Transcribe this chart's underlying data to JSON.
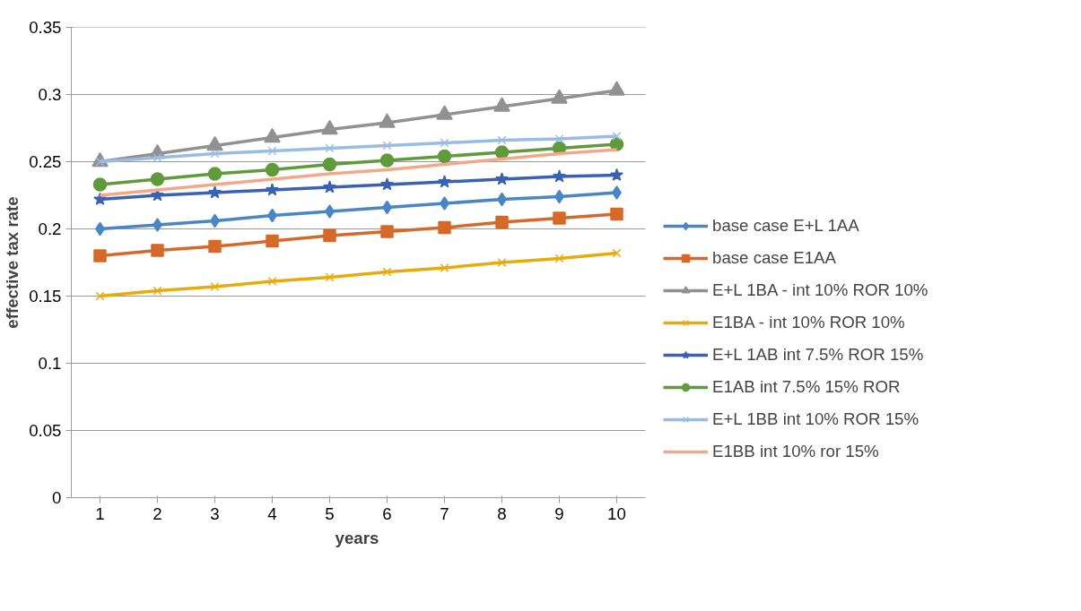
{
  "chart_data": {
    "type": "line",
    "xlabel": "years",
    "ylabel": "effective tax rate",
    "categories": [
      "1",
      "2",
      "3",
      "4",
      "5",
      "6",
      "7",
      "8",
      "9",
      "10"
    ],
    "ylim": [
      0,
      0.35
    ],
    "yticks": [
      0,
      0.05,
      0.1,
      0.15,
      0.2,
      0.25,
      0.3,
      0.35
    ],
    "grid": "y",
    "legend": "right",
    "series": [
      {
        "name": "base case E+L 1AA",
        "color": "#4a86c4",
        "marker": "diamond",
        "values": [
          0.2,
          0.203,
          0.206,
          0.21,
          0.213,
          0.216,
          0.219,
          0.222,
          0.224,
          0.227
        ]
      },
      {
        "name": "base case E1AA",
        "color": "#d4692a",
        "marker": "square",
        "values": [
          0.18,
          0.184,
          0.187,
          0.191,
          0.195,
          0.198,
          0.201,
          0.205,
          0.208,
          0.211
        ]
      },
      {
        "name": "E+L 1BA - int 10% ROR 10%",
        "color": "#919191",
        "marker": "triangle",
        "values": [
          0.25,
          0.256,
          0.262,
          0.268,
          0.274,
          0.279,
          0.285,
          0.291,
          0.297,
          0.303
        ]
      },
      {
        "name": "E1BA - int 10% ROR 10%",
        "color": "#e8ab0c",
        "marker": "cross",
        "values": [
          0.15,
          0.154,
          0.157,
          0.161,
          0.164,
          0.168,
          0.171,
          0.175,
          0.178,
          0.182
        ]
      },
      {
        "name": "E+L 1AB int 7.5% ROR 15%",
        "color": "#3a62b2",
        "marker": "star",
        "values": [
          0.222,
          0.225,
          0.227,
          0.229,
          0.231,
          0.233,
          0.235,
          0.237,
          0.239,
          0.24
        ]
      },
      {
        "name": "E1AB int 7.5% 15% ROR",
        "color": "#619a3c",
        "marker": "circle",
        "values": [
          0.233,
          0.237,
          0.241,
          0.244,
          0.248,
          0.251,
          0.254,
          0.257,
          0.26,
          0.263
        ]
      },
      {
        "name": "E+L 1BB int 10% ROR 15%",
        "color": "#9abce4",
        "marker": "cross",
        "values": [
          0.25,
          0.253,
          0.256,
          0.258,
          0.26,
          0.262,
          0.264,
          0.266,
          0.267,
          0.269
        ]
      },
      {
        "name": "E1BB int 10% ror 15%",
        "color": "#f2a98a",
        "marker": "none",
        "values": [
          0.225,
          0.229,
          0.233,
          0.237,
          0.241,
          0.244,
          0.248,
          0.252,
          0.256,
          0.259
        ]
      }
    ]
  }
}
